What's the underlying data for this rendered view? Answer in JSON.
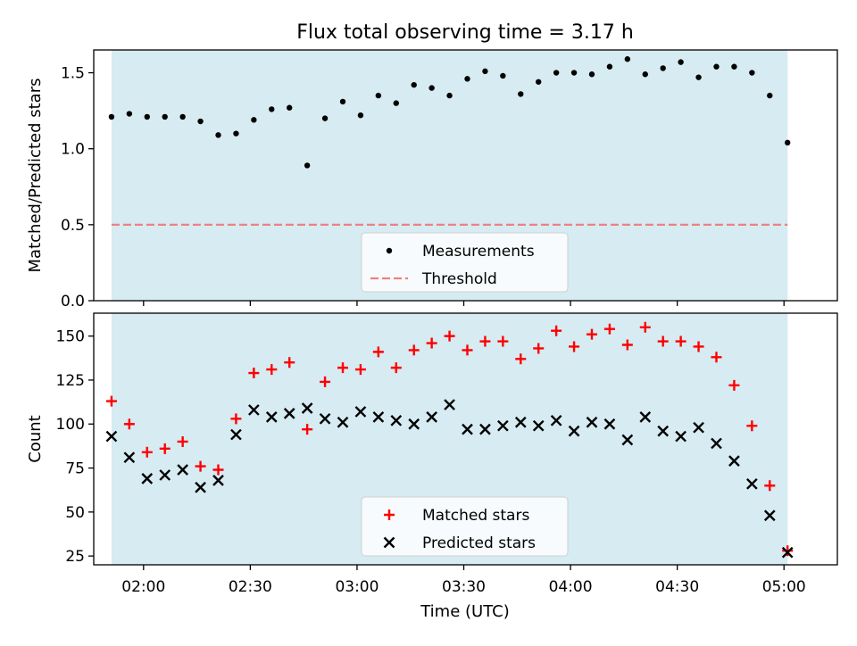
{
  "chart_data": [
    {
      "type": "scatter",
      "title": "Flux total observing time = 3.17 h",
      "xlabel": "",
      "ylabel": "Matched/Predicted stars",
      "ylim": [
        0,
        1.65
      ],
      "xlim_minutes": [
        106,
        315
      ],
      "yticks": [
        0.0,
        0.5,
        1.0,
        1.5
      ],
      "ytick_labels": [
        "0.0",
        "0.5",
        "1.0",
        "1.5"
      ],
      "shaded_span_minutes": [
        111,
        301
      ],
      "shaded_color": "#add8e6",
      "legend_location": "lower-center",
      "series": [
        {
          "name": "Measurements",
          "marker": "dot",
          "color": "#000000",
          "x": [
            111,
            116,
            121,
            126,
            131,
            136,
            141,
            146,
            151,
            156,
            161,
            166,
            171,
            176,
            181,
            186,
            191,
            196,
            201,
            206,
            211,
            216,
            221,
            226,
            231,
            236,
            241,
            246,
            251,
            256,
            261,
            266,
            271,
            276,
            281,
            286,
            291,
            296,
            301
          ],
          "y": [
            1.21,
            1.23,
            1.21,
            1.21,
            1.21,
            1.18,
            1.09,
            1.1,
            1.19,
            1.26,
            1.27,
            0.89,
            1.2,
            1.31,
            1.22,
            1.35,
            1.3,
            1.42,
            1.4,
            1.35,
            1.46,
            1.51,
            1.48,
            1.36,
            1.44,
            1.5,
            1.5,
            1.49,
            1.54,
            1.59,
            1.49,
            1.53,
            1.57,
            1.47,
            1.54,
            1.54,
            1.5,
            1.35,
            1.04
          ]
        },
        {
          "name": "Threshold",
          "style": "dashed",
          "color": "#f08080",
          "x": [
            111,
            301
          ],
          "y": [
            0.5,
            0.5
          ]
        }
      ]
    },
    {
      "type": "scatter",
      "title": "",
      "xlabel": "Time (UTC)",
      "ylabel": "Count",
      "ylim": [
        20,
        163
      ],
      "xlim_minutes": [
        106,
        315
      ],
      "xticks_minutes": [
        120,
        150,
        180,
        210,
        240,
        270,
        300
      ],
      "xtick_labels": [
        "02:00",
        "02:30",
        "03:00",
        "03:30",
        "04:00",
        "04:30",
        "05:00"
      ],
      "yticks": [
        25,
        50,
        75,
        100,
        125,
        150
      ],
      "ytick_labels": [
        "25",
        "50",
        "75",
        "100",
        "125",
        "150"
      ],
      "shaded_span_minutes": [
        111,
        301
      ],
      "shaded_color": "#add8e6",
      "legend_location": "lower-center",
      "series": [
        {
          "name": "Matched stars",
          "marker": "plus",
          "color": "#ff0000",
          "x": [
            111,
            116,
            121,
            126,
            131,
            136,
            141,
            146,
            151,
            156,
            161,
            166,
            171,
            176,
            181,
            186,
            191,
            196,
            201,
            206,
            211,
            216,
            221,
            226,
            231,
            236,
            241,
            246,
            251,
            256,
            261,
            266,
            271,
            276,
            281,
            286,
            291,
            296,
            301
          ],
          "y": [
            113,
            100,
            84,
            86,
            90,
            76,
            74,
            103,
            129,
            131,
            135,
            97,
            124,
            132,
            131,
            141,
            132,
            142,
            146,
            150,
            142,
            147,
            147,
            137,
            143,
            153,
            144,
            151,
            154,
            145,
            155,
            147,
            147,
            144,
            138,
            122,
            99,
            65,
            28
          ]
        },
        {
          "name": "Predicted stars",
          "marker": "x",
          "color": "#000000",
          "x": [
            111,
            116,
            121,
            126,
            131,
            136,
            141,
            146,
            151,
            156,
            161,
            166,
            171,
            176,
            181,
            186,
            191,
            196,
            201,
            206,
            211,
            216,
            221,
            226,
            231,
            236,
            241,
            246,
            251,
            256,
            261,
            266,
            271,
            276,
            281,
            286,
            291,
            296,
            301
          ],
          "y": [
            93,
            81,
            69,
            71,
            74,
            64,
            68,
            94,
            108,
            104,
            106,
            109,
            103,
            101,
            107,
            104,
            102,
            100,
            104,
            111,
            97,
            97,
            99,
            101,
            99,
            102,
            96,
            101,
            100,
            91,
            104,
            96,
            93,
            98,
            89,
            79,
            66,
            48,
            27
          ]
        }
      ]
    }
  ]
}
